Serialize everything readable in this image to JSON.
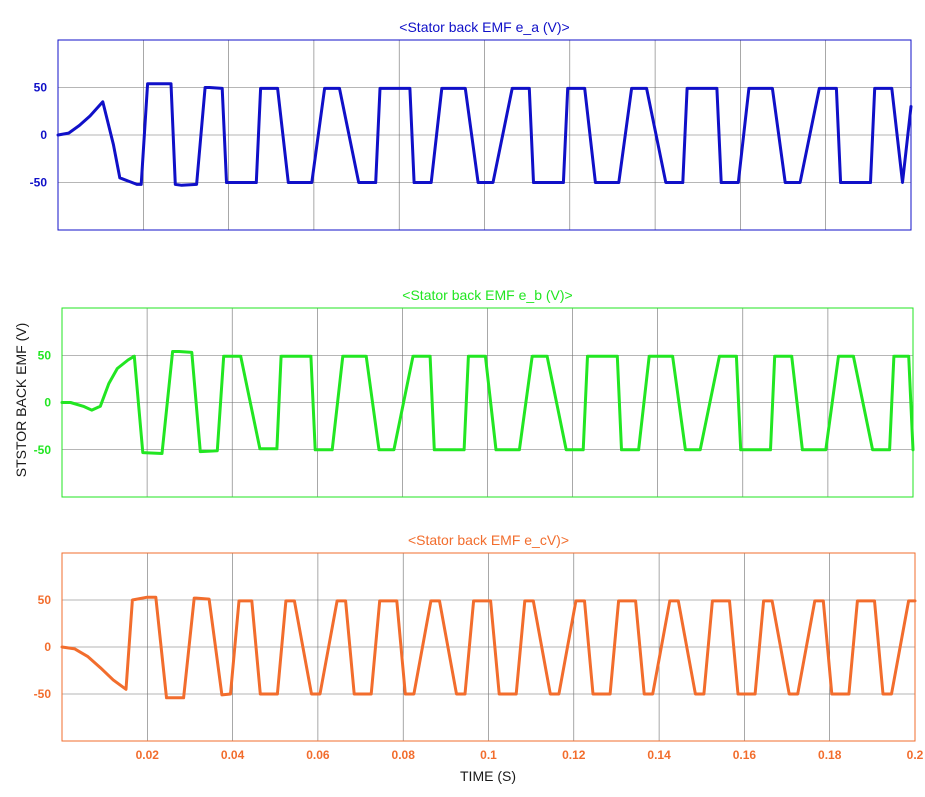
{
  "figure": {
    "ylabel": "STSTOR BACK EMF (V)",
    "xlabel": "TIME (S)"
  },
  "chart_data": [
    {
      "type": "line",
      "title": "<Stator back EMF e_a (V)>",
      "color": "#1010c8",
      "xlim": [
        0,
        0.2
      ],
      "ylim": [
        -100,
        100
      ],
      "grid": true,
      "yticks": [
        50,
        0,
        -50
      ],
      "yticklabels": [
        "50",
        "0",
        "-50"
      ],
      "xticks": [
        0.02,
        0.04,
        0.06,
        0.08,
        0.1,
        0.12,
        0.14,
        0.16,
        0.18,
        0.2
      ],
      "xticklabels": [],
      "series": [
        {
          "x": [
            0,
            0.0025,
            0.005,
            0.0075,
            0.0105,
            0.013,
            0.0145,
            0.0185,
            0.0195,
            0.021,
            0.022,
            0.0265,
            0.0275,
            0.029,
            0.0325,
            0.0345,
            0.0355,
            0.0385,
            0.0395,
            0.042,
            0.0465,
            0.0475,
            0.0505,
            0.0515,
            0.054,
            0.0585,
            0.0595,
            0.0625,
            0.0635,
            0.066,
            0.0705,
            0.0715,
            0.0745,
            0.0755,
            0.078,
            0.0825,
            0.0835,
            0.0865,
            0.0875,
            0.09,
            0.0945,
            0.0955,
            0.0985,
            0.0995,
            0.102,
            0.1065,
            0.1075,
            0.1105,
            0.1115,
            0.114,
            0.1185,
            0.1195,
            0.1225,
            0.1235,
            0.126,
            0.1305,
            0.1315,
            0.1345,
            0.1355,
            0.138,
            0.1425,
            0.1435,
            0.1465,
            0.1475,
            0.15,
            0.1545,
            0.1555,
            0.1585,
            0.1595,
            0.162,
            0.1665,
            0.1675,
            0.1705,
            0.1715,
            0.174,
            0.1785,
            0.1795,
            0.1825,
            0.1835,
            0.186,
            0.1905,
            0.1915,
            0.1945,
            0.1955,
            0.198,
            0.2
          ],
          "y": [
            0,
            2,
            10,
            20,
            35,
            -10,
            -45,
            -52,
            -52,
            54,
            54,
            54,
            -52,
            -53,
            -52,
            50,
            50,
            49,
            -50,
            -50,
            -50,
            49,
            49,
            49,
            -50,
            -50,
            -50,
            49,
            49,
            49,
            -50,
            -50,
            -50,
            49,
            49,
            49,
            -50,
            -50,
            -50,
            49,
            49,
            49,
            -50,
            -50,
            -50,
            49,
            49,
            49,
            -50,
            -50,
            -50,
            49,
            49,
            49,
            -50,
            -50,
            -50,
            49,
            49,
            49,
            -50,
            -50,
            -50,
            49,
            49,
            49,
            -50,
            -50,
            -50,
            49,
            49,
            49,
            -50,
            -50,
            -50,
            49,
            49,
            49,
            -50,
            -50,
            -50,
            49,
            49,
            49,
            -50,
            30
          ]
        }
      ]
    },
    {
      "type": "line",
      "title": "<Stator back EMF e_b (V)>",
      "color": "#22e622",
      "xlim": [
        0,
        0.2
      ],
      "ylim": [
        -100,
        100
      ],
      "grid": true,
      "yticks": [
        50,
        0,
        -50
      ],
      "yticklabels": [
        "50",
        "0",
        "-50"
      ],
      "xticks": [
        0.02,
        0.04,
        0.06,
        0.08,
        0.1,
        0.12,
        0.14,
        0.16,
        0.18,
        0.2
      ],
      "xticklabels": [],
      "series": [
        {
          "x": [
            0,
            0.002,
            0.005,
            0.007,
            0.009,
            0.011,
            0.013,
            0.0155,
            0.017,
            0.019,
            0.0235,
            0.026,
            0.0275,
            0.0305,
            0.0325,
            0.0365,
            0.038,
            0.0395,
            0.042,
            0.0465,
            0.0475,
            0.0505,
            0.0515,
            0.054,
            0.0585,
            0.0595,
            0.0625,
            0.0635,
            0.066,
            0.0705,
            0.0715,
            0.0745,
            0.0755,
            0.078,
            0.0825,
            0.0835,
            0.0865,
            0.0875,
            0.09,
            0.0945,
            0.0955,
            0.0985,
            0.0995,
            0.102,
            0.1065,
            0.1075,
            0.1105,
            0.1115,
            0.114,
            0.1185,
            0.1195,
            0.1225,
            0.1235,
            0.126,
            0.1305,
            0.1315,
            0.1345,
            0.1355,
            0.138,
            0.1425,
            0.1435,
            0.1465,
            0.1475,
            0.15,
            0.1545,
            0.1555,
            0.1585,
            0.1595,
            0.162,
            0.1665,
            0.1675,
            0.1705,
            0.1715,
            0.174,
            0.1785,
            0.1795,
            0.1825,
            0.1835,
            0.186,
            0.1905,
            0.1915,
            0.1945,
            0.1955,
            0.198,
            0.199,
            0.2
          ],
          "y": [
            0,
            0,
            -4,
            -8,
            -4,
            20,
            36,
            45,
            49,
            -53,
            -54,
            54,
            54,
            53,
            -52,
            -51,
            49,
            49,
            49,
            -49,
            -49,
            -49,
            49,
            49,
            49,
            -50,
            -50,
            -50,
            49,
            49,
            49,
            -50,
            -50,
            -50,
            49,
            49,
            49,
            -50,
            -50,
            -50,
            49,
            49,
            49,
            -50,
            -50,
            -50,
            49,
            49,
            49,
            -50,
            -50,
            -50,
            49,
            49,
            49,
            -50,
            -50,
            -50,
            49,
            49,
            49,
            -50,
            -50,
            -50,
            49,
            49,
            49,
            -50,
            -50,
            -50,
            49,
            49,
            49,
            -50,
            -50,
            -50,
            49,
            49,
            49,
            -50,
            -50,
            -50,
            49,
            49,
            49,
            -50
          ]
        }
      ]
    },
    {
      "type": "line",
      "title": "<Stator back EMF e_cV)>",
      "color": "#f26d2d",
      "xlim": [
        0,
        0.2
      ],
      "ylim": [
        -100,
        100
      ],
      "grid": true,
      "yticks": [
        50,
        0,
        -50
      ],
      "yticklabels": [
        "50",
        "0",
        "-50"
      ],
      "xticks": [
        0.02,
        0.04,
        0.06,
        0.08,
        0.1,
        0.12,
        0.14,
        0.16,
        0.18,
        0.2
      ],
      "xticklabels": [
        "0.02",
        "0.04",
        "0.06",
        "0.08",
        "0.1",
        "0.12",
        "0.14",
        "0.16",
        "0.18",
        "0.2"
      ],
      "series": [
        {
          "x": [
            0,
            0.003,
            0.006,
            0.009,
            0.012,
            0.015,
            0.0165,
            0.02,
            0.022,
            0.0245,
            0.0285,
            0.031,
            0.0315,
            0.0345,
            0.0375,
            0.0395,
            0.0415,
            0.0445,
            0.0465,
            0.0505,
            0.0525,
            0.0545,
            0.0585,
            0.0605,
            0.0645,
            0.0665,
            0.0685,
            0.0725,
            0.0745,
            0.0785,
            0.0805,
            0.0825,
            0.0865,
            0.0885,
            0.0925,
            0.0945,
            0.0965,
            0.1005,
            0.1025,
            0.1065,
            0.1085,
            0.1105,
            0.1145,
            0.1165,
            0.1205,
            0.1225,
            0.1245,
            0.1285,
            0.1305,
            0.1345,
            0.1365,
            0.1385,
            0.1425,
            0.1445,
            0.1485,
            0.1505,
            0.1525,
            0.1565,
            0.1585,
            0.1625,
            0.1645,
            0.1665,
            0.1705,
            0.1725,
            0.1765,
            0.1785,
            0.1805,
            0.1845,
            0.1865,
            0.1905,
            0.1925,
            0.1945,
            0.1985,
            0.2
          ],
          "y": [
            0,
            -2,
            -10,
            -22,
            -35,
            -45,
            50,
            53,
            53,
            -54,
            -54,
            52,
            52,
            51,
            -51,
            -50,
            49,
            49,
            -50,
            -50,
            49,
            49,
            -50,
            -50,
            49,
            49,
            -50,
            -50,
            49,
            49,
            -50,
            -50,
            49,
            49,
            -50,
            -50,
            49,
            49,
            -50,
            -50,
            49,
            49,
            -50,
            -50,
            49,
            49,
            -50,
            -50,
            49,
            49,
            -50,
            -50,
            49,
            49,
            -50,
            -50,
            49,
            49,
            -50,
            -50,
            49,
            49,
            -50,
            -50,
            49,
            49,
            -50,
            -50,
            49,
            49,
            -50,
            -50,
            49,
            49
          ]
        }
      ]
    }
  ]
}
